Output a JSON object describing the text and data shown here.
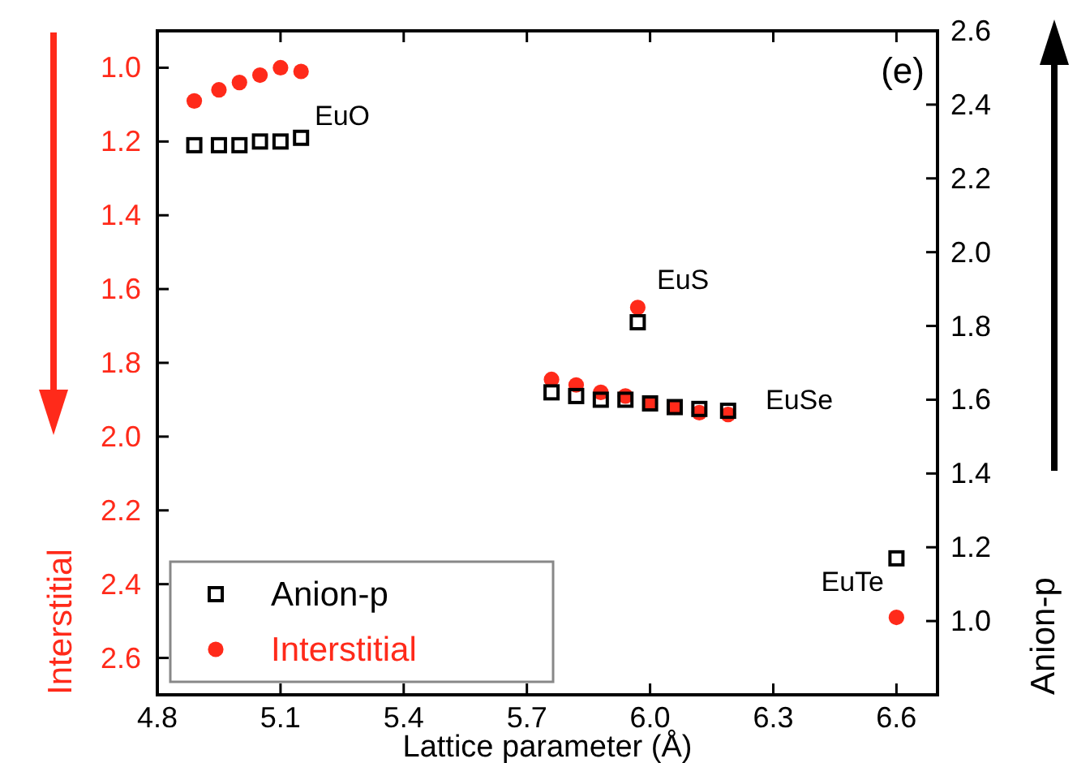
{
  "chart_data": {
    "type": "scatter",
    "xlabel": "Lattice parameter (Å)",
    "ylabel": "Interstitial",
    "y2label": "Anion-p",
    "xlim": [
      4.8,
      6.7
    ],
    "xticks": [
      4.8,
      5.1,
      5.4,
      5.7,
      {
        "value": 6,
        "label": "6.0"
      },
      6.3,
      6.6
    ],
    "ylim": [
      2.7,
      0.9
    ],
    "yticks": [
      {
        "value": 1,
        "label": "1.0"
      },
      1.2,
      1.4,
      1.6,
      1.8,
      {
        "value": 2,
        "label": "2.0"
      },
      2.2,
      2.4,
      2.6
    ],
    "y2lim": [
      0.8,
      2.6
    ],
    "y2ticks": [
      {
        "value": 1,
        "label": "1.0"
      },
      1.2,
      1.4,
      1.6,
      1.8,
      {
        "value": 2,
        "label": "2.0"
      },
      2.2,
      2.4,
      2.6
    ],
    "legend": "bottom left",
    "grid": false,
    "series": [
      {
        "name": "Anion-p",
        "color": "#000000",
        "marker": "square",
        "axis": "y2",
        "x": [
          4.89,
          4.95,
          5.0,
          5.05,
          5.1,
          5.15,
          5.97,
          5.76,
          5.82,
          5.88,
          5.94,
          6.0,
          6.06,
          6.12,
          6.19,
          6.6
        ],
        "values": [
          2.29,
          2.29,
          2.29,
          2.3,
          2.3,
          2.31,
          1.81,
          1.62,
          1.61,
          1.6,
          1.6,
          1.59,
          1.58,
          1.575,
          1.57,
          1.17
        ]
      },
      {
        "name": "Interstitial",
        "color": "#ff2a1a",
        "marker": "circle",
        "x": [
          4.89,
          4.95,
          5.0,
          5.05,
          5.1,
          5.15,
          5.97,
          5.76,
          5.82,
          5.88,
          5.94,
          6.0,
          6.06,
          6.12,
          6.19,
          6.6
        ],
        "values": [
          1.09,
          1.06,
          1.04,
          1.02,
          1.0,
          1.01,
          1.65,
          1.845,
          1.86,
          1.88,
          1.89,
          1.91,
          1.92,
          1.935,
          1.94,
          2.49
        ]
      }
    ],
    "annotations": [
      "EuO",
      "EuS",
      "EuSe",
      "EuTe",
      "(e)"
    ]
  }
}
